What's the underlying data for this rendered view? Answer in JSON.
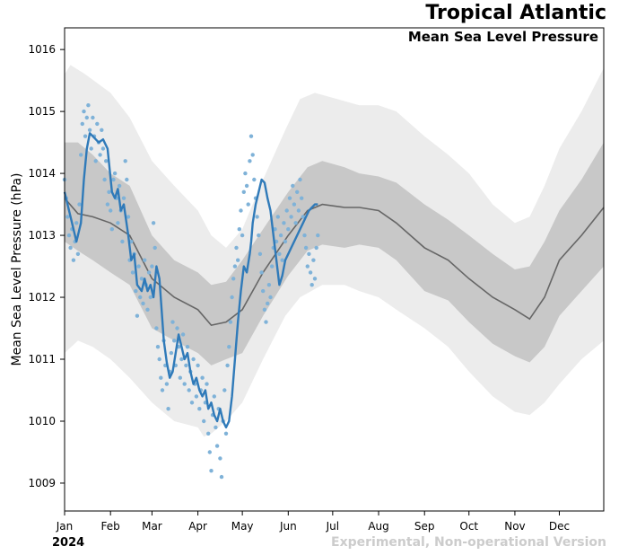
{
  "chart_data": {
    "type": "line",
    "title": "Tropical Atlantic",
    "subtitle": "Mean Sea Level Pressure",
    "xlabel": "",
    "ylabel": "Mean Sea Level Pressure (hPa)",
    "year_label": "2024",
    "watermark": "Experimental, Non-operational Version",
    "xlim": [
      1,
      365
    ],
    "ylim": [
      1008.55,
      1016.35
    ],
    "x_ticks": [
      {
        "label": "Jan",
        "doy": 1
      },
      {
        "label": "Feb",
        "doy": 32
      },
      {
        "label": "Mar",
        "doy": 60
      },
      {
        "label": "Apr",
        "doy": 91
      },
      {
        "label": "May",
        "doy": 121
      },
      {
        "label": "Jun",
        "doy": 152
      },
      {
        "label": "Jul",
        "doy": 182
      },
      {
        "label": "Aug",
        "doy": 213
      },
      {
        "label": "Sep",
        "doy": 244
      },
      {
        "label": "Oct",
        "doy": 274
      },
      {
        "label": "Nov",
        "doy": 305
      },
      {
        "label": "Dec",
        "doy": 335
      }
    ],
    "y_ticks": [
      1009,
      1010,
      1011,
      1012,
      1013,
      1014,
      1015,
      1016
    ],
    "colors": {
      "outer_band": "#ececec",
      "inner_band": "#c8c8c8",
      "climatology": "#666666",
      "smoothed": "#2f7ab9",
      "observed": "#7fb2d8"
    },
    "series": [
      {
        "name": "Climatology mean",
        "x": [
          1,
          10,
          20,
          32,
          45,
          60,
          75,
          91,
          100,
          110,
          121,
          135,
          152,
          165,
          175,
          190,
          200,
          213,
          225,
          244,
          260,
          274,
          290,
          305,
          315,
          325,
          335,
          350,
          365
        ],
        "values": [
          1013.6,
          1013.35,
          1013.3,
          1013.2,
          1013.0,
          1012.3,
          1012.0,
          1011.8,
          1011.55,
          1011.6,
          1011.8,
          1012.4,
          1013.0,
          1013.4,
          1013.5,
          1013.45,
          1013.45,
          1013.4,
          1013.2,
          1012.8,
          1012.6,
          1012.3,
          1012.0,
          1011.8,
          1011.65,
          1012.0,
          1012.6,
          1013.0,
          1013.45
        ]
      },
      {
        "name": "Inner band upper",
        "x": [
          1,
          10,
          20,
          32,
          45,
          60,
          75,
          91,
          100,
          110,
          121,
          135,
          152,
          165,
          175,
          190,
          200,
          213,
          225,
          244,
          260,
          274,
          290,
          305,
          315,
          325,
          335,
          350,
          365
        ],
        "values": [
          1014.5,
          1014.5,
          1014.3,
          1014.0,
          1013.8,
          1013.0,
          1012.6,
          1012.4,
          1012.2,
          1012.25,
          1012.6,
          1013.1,
          1013.7,
          1014.1,
          1014.2,
          1014.1,
          1014.0,
          1013.95,
          1013.85,
          1013.5,
          1013.25,
          1013.0,
          1012.7,
          1012.45,
          1012.5,
          1012.9,
          1013.4,
          1013.9,
          1014.5
        ]
      },
      {
        "name": "Inner band lower",
        "x": [
          1,
          10,
          20,
          32,
          45,
          60,
          75,
          91,
          100,
          110,
          121,
          135,
          152,
          165,
          175,
          190,
          200,
          213,
          225,
          244,
          260,
          274,
          290,
          305,
          315,
          325,
          335,
          350,
          365
        ],
        "values": [
          1012.9,
          1012.75,
          1012.6,
          1012.4,
          1012.2,
          1011.5,
          1011.3,
          1011.1,
          1010.9,
          1011.0,
          1011.1,
          1011.7,
          1012.35,
          1012.75,
          1012.85,
          1012.8,
          1012.85,
          1012.8,
          1012.6,
          1012.1,
          1011.95,
          1011.6,
          1011.25,
          1011.05,
          1010.95,
          1011.2,
          1011.7,
          1012.1,
          1012.5
        ]
      },
      {
        "name": "Outer band upper",
        "x": [
          1,
          5,
          15,
          32,
          45,
          60,
          75,
          91,
          100,
          110,
          121,
          135,
          150,
          160,
          170,
          185,
          200,
          213,
          225,
          244,
          260,
          274,
          290,
          305,
          315,
          325,
          335,
          350,
          365
        ],
        "values": [
          1015.6,
          1015.75,
          1015.6,
          1015.3,
          1014.9,
          1014.2,
          1013.8,
          1013.4,
          1013.0,
          1012.8,
          1013.1,
          1013.9,
          1014.7,
          1015.2,
          1015.3,
          1015.2,
          1015.1,
          1015.1,
          1015.0,
          1014.6,
          1014.3,
          1014.0,
          1013.5,
          1013.2,
          1013.3,
          1013.8,
          1014.4,
          1015.0,
          1015.7
        ]
      },
      {
        "name": "Outer band lower",
        "x": [
          1,
          10,
          20,
          32,
          45,
          60,
          75,
          91,
          95,
          100,
          110,
          121,
          135,
          150,
          160,
          175,
          190,
          200,
          213,
          225,
          244,
          260,
          274,
          290,
          305,
          315,
          325,
          335,
          350,
          365
        ],
        "values": [
          1011.1,
          1011.3,
          1011.2,
          1011.0,
          1010.7,
          1010.3,
          1010.0,
          1009.9,
          1009.75,
          1009.8,
          1010.0,
          1010.3,
          1011.0,
          1011.7,
          1012.0,
          1012.2,
          1012.2,
          1012.1,
          1012.0,
          1011.8,
          1011.5,
          1011.2,
          1010.8,
          1010.4,
          1010.15,
          1010.1,
          1010.3,
          1010.6,
          1011.0,
          1011.3
        ]
      },
      {
        "name": "Smoothed observed",
        "x": [
          1,
          3,
          6,
          9,
          12,
          14,
          16,
          18,
          20,
          24,
          27,
          30,
          33,
          35,
          37,
          39,
          41,
          44,
          46,
          48,
          50,
          53,
          55,
          57,
          59,
          61,
          63,
          65,
          68,
          70,
          72,
          74,
          76,
          78,
          80,
          82,
          84,
          86,
          88,
          90,
          92,
          94,
          96,
          98,
          100,
          102,
          104,
          106,
          108,
          110,
          112,
          114,
          116,
          118,
          120,
          122,
          124,
          126,
          127,
          128,
          130,
          132,
          134,
          136,
          138,
          140,
          142,
          144,
          146,
          148,
          150,
          152,
          154,
          156,
          158,
          160,
          162,
          164,
          166,
          168,
          170,
          172
        ],
        "values": [
          1013.7,
          1013.5,
          1013.2,
          1012.9,
          1013.2,
          1013.9,
          1014.4,
          1014.65,
          1014.6,
          1014.5,
          1014.55,
          1014.4,
          1013.7,
          1013.6,
          1013.75,
          1013.4,
          1013.5,
          1013.0,
          1012.6,
          1012.7,
          1012.2,
          1012.1,
          1012.3,
          1012.1,
          1012.2,
          1012.0,
          1012.5,
          1012.3,
          1011.3,
          1010.95,
          1010.7,
          1010.8,
          1011.1,
          1011.4,
          1011.2,
          1011.0,
          1011.1,
          1010.8,
          1010.6,
          1010.7,
          1010.5,
          1010.4,
          1010.5,
          1010.2,
          1010.3,
          1010.1,
          1010.0,
          1010.2,
          1010.0,
          1009.9,
          1010.0,
          1010.4,
          1011.0,
          1011.6,
          1012.1,
          1012.5,
          1012.4,
          1012.7,
          1012.9,
          1013.2,
          1013.5,
          1013.7,
          1013.9,
          1013.85,
          1013.6,
          1013.4,
          1013.0,
          1012.6,
          1012.2,
          1012.35,
          1012.6,
          1012.7,
          1012.8,
          1012.9,
          1013.0,
          1013.1,
          1013.2,
          1013.3,
          1013.4,
          1013.45,
          1013.5,
          1013.5
        ]
      },
      {
        "name": "Observed",
        "x": [
          1,
          2,
          3,
          4,
          5,
          6,
          7,
          8,
          9,
          10,
          11,
          12,
          13,
          14,
          15,
          16,
          17,
          18,
          19,
          20,
          21,
          22,
          23,
          24,
          25,
          26,
          27,
          28,
          29,
          30,
          31,
          32,
          33,
          34,
          35,
          36,
          37,
          38,
          39,
          40,
          41,
          42,
          43,
          44,
          45,
          46,
          47,
          48,
          49,
          50,
          51,
          52,
          53,
          54,
          55,
          56,
          57,
          58,
          59,
          60,
          61,
          62,
          63,
          64,
          65,
          66,
          67,
          68,
          69,
          70,
          71,
          72,
          73,
          74,
          75,
          76,
          77,
          78,
          79,
          80,
          81,
          82,
          83,
          84,
          85,
          86,
          87,
          88,
          89,
          90,
          91,
          92,
          93,
          94,
          95,
          96,
          97,
          98,
          99,
          100,
          101,
          102,
          103,
          104,
          105,
          106,
          107,
          108,
          109,
          110,
          111,
          112,
          113,
          114,
          115,
          116,
          117,
          118,
          119,
          120,
          121,
          122,
          123,
          124,
          125,
          126,
          127,
          128,
          129,
          130,
          131,
          132,
          133,
          134,
          135,
          136,
          137,
          138,
          139,
          140,
          141,
          142,
          143,
          144,
          145,
          146,
          147,
          148,
          149,
          150,
          151,
          152,
          153,
          154,
          155,
          156,
          157,
          158,
          159,
          160,
          161,
          162,
          163,
          164,
          165,
          166,
          167,
          168,
          169,
          170,
          171,
          172
        ],
        "values": [
          1013.9,
          1013.6,
          1013.3,
          1013.0,
          1012.8,
          1013.1,
          1012.6,
          1012.9,
          1013.2,
          1012.7,
          1013.5,
          1014.3,
          1014.8,
          1015.0,
          1014.6,
          1014.9,
          1015.1,
          1014.7,
          1014.4,
          1014.9,
          1014.6,
          1014.2,
          1014.8,
          1014.5,
          1014.3,
          1014.7,
          1014.4,
          1013.9,
          1014.2,
          1013.5,
          1013.7,
          1013.4,
          1013.1,
          1013.9,
          1014.0,
          1013.6,
          1013.2,
          1013.8,
          1013.4,
          1012.9,
          1013.6,
          1014.2,
          1013.9,
          1013.3,
          1012.6,
          1012.9,
          1012.4,
          1012.7,
          1012.1,
          1011.7,
          1012.5,
          1012.0,
          1012.3,
          1011.9,
          1012.6,
          1012.2,
          1011.8,
          1012.4,
          1012.0,
          1012.5,
          1013.2,
          1012.8,
          1011.5,
          1011.2,
          1011.0,
          1010.7,
          1010.5,
          1011.3,
          1010.9,
          1010.6,
          1010.2,
          1010.8,
          1011.1,
          1011.6,
          1011.3,
          1010.9,
          1011.5,
          1011.2,
          1010.7,
          1011.0,
          1011.4,
          1010.6,
          1010.9,
          1011.2,
          1010.5,
          1010.8,
          1010.3,
          1011.0,
          1010.6,
          1010.4,
          1010.9,
          1010.2,
          1010.5,
          1010.7,
          1010.0,
          1010.3,
          1010.6,
          1009.8,
          1009.5,
          1009.2,
          1010.1,
          1010.4,
          1009.9,
          1009.6,
          1010.2,
          1009.4,
          1009.1,
          1010.0,
          1010.5,
          1009.8,
          1010.9,
          1011.2,
          1011.6,
          1012.0,
          1012.3,
          1012.5,
          1012.8,
          1012.6,
          1013.1,
          1013.4,
          1013.0,
          1013.7,
          1014.0,
          1013.8,
          1013.5,
          1014.2,
          1014.6,
          1014.3,
          1013.9,
          1013.6,
          1013.3,
          1013.0,
          1012.7,
          1012.4,
          1012.1,
          1011.8,
          1011.6,
          1011.9,
          1012.2,
          1012.0,
          1012.5,
          1012.8,
          1013.1,
          1012.9,
          1013.3,
          1012.7,
          1013.0,
          1012.6,
          1013.2,
          1012.9,
          1013.4,
          1013.1,
          1013.6,
          1013.3,
          1013.8,
          1013.5,
          1013.2,
          1013.7,
          1013.4,
          1013.9,
          1013.6,
          1013.3,
          1013.0,
          1012.8,
          1012.5,
          1012.7,
          1012.4,
          1012.2,
          1012.6,
          1012.3,
          1012.8,
          1013.0
        ]
      }
    ]
  }
}
